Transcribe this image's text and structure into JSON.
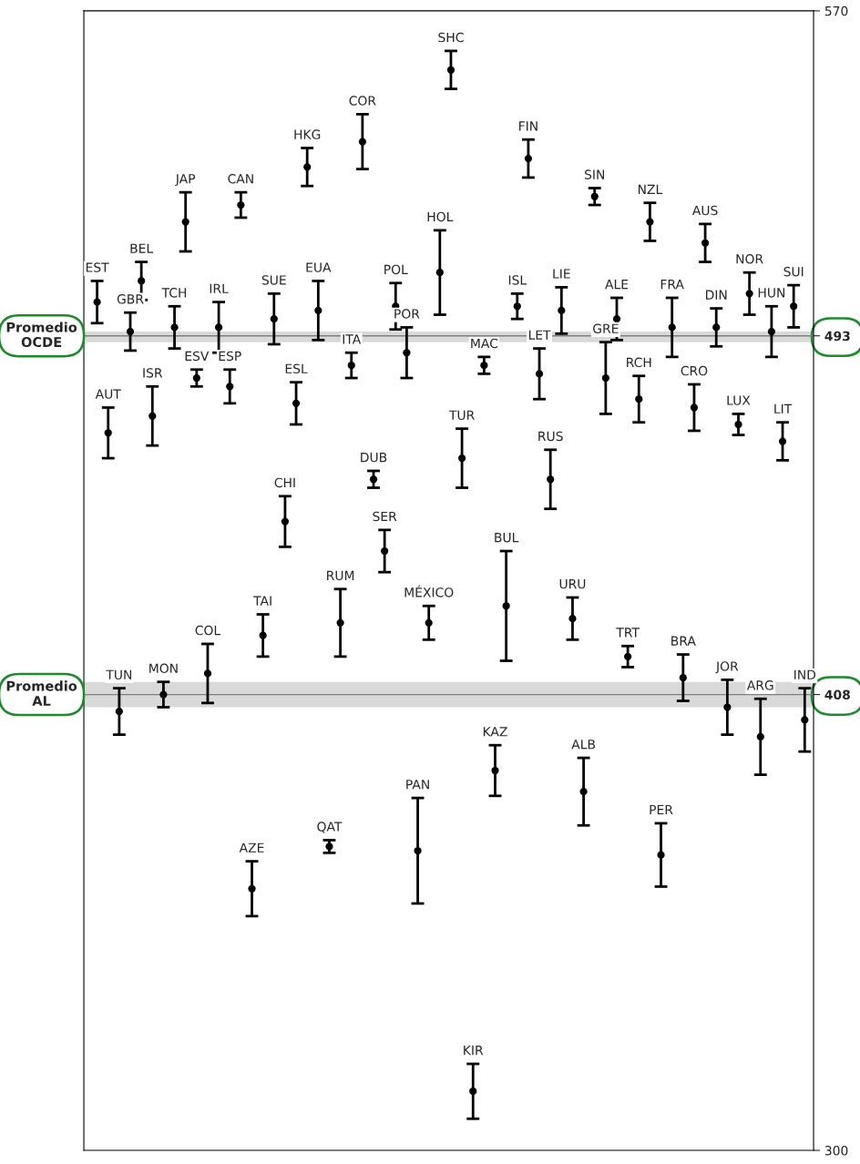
{
  "chart_data": {
    "type": "scatter",
    "categories": [
      "EST",
      "AUT",
      "TUN",
      "GBR",
      "BEL",
      "ISR",
      "MON",
      "TCH",
      "JAP",
      "ESV",
      "COL",
      "IRL",
      "ESP",
      "CAN",
      "AZE",
      "TAI",
      "SUE",
      "CHI",
      "ESL",
      "HKG",
      "EUA",
      "QAT",
      "RUM",
      "ITA",
      "COR",
      "DUB",
      "SER",
      "POL",
      "POR",
      "PAN",
      "MÉXICO",
      "HOL",
      "SHC",
      "TUR",
      "KIR",
      "MAC",
      "KAZ",
      "BUL",
      "ISL",
      "FIN",
      "LET",
      "RUS",
      "LIE",
      "URU",
      "ALB",
      "SIN",
      "GRE",
      "ALE",
      "TRT",
      "RCH",
      "NZL",
      "PER",
      "FRA",
      "BRA",
      "CRO",
      "AUS",
      "DIN",
      "JOR",
      "LUX",
      "NOR",
      "ARG",
      "HUN",
      "LIT",
      "SUI",
      "IND"
    ],
    "series": [
      {
        "color": "#000000",
        "values": [
          501,
          470,
          404,
          494,
          506,
          474,
          408,
          495,
          520,
          483,
          413,
          495,
          481,
          524,
          362,
          422,
          497,
          449,
          477,
          533,
          499,
          372,
          425,
          486,
          539,
          459,
          442,
          500,
          489,
          371,
          425,
          508,
          556,
          464,
          314,
          486,
          390,
          429,
          500,
          535,
          484,
          459,
          499,
          426,
          385,
          526,
          483,
          497,
          417,
          478,
          520,
          370,
          495,
          412,
          476,
          515,
          495,
          405,
          472,
          503,
          398,
          494,
          468,
          500,
          402
        ],
        "errors": [
          5,
          6,
          5.5,
          4.5,
          4.5,
          7,
          3,
          5,
          7,
          2,
          7,
          6,
          4,
          3,
          6.5,
          5,
          6,
          6,
          5,
          4.5,
          7,
          1.5,
          8,
          3,
          6.5,
          2,
          5,
          5.5,
          6,
          12.5,
          4,
          10,
          4.5,
          7,
          6.5,
          2,
          6,
          13,
          3,
          4.5,
          6,
          7,
          5.5,
          5,
          8,
          2,
          8.5,
          5,
          2.5,
          5.5,
          4.5,
          7.5,
          7,
          5.5,
          5.5,
          4.5,
          4.5,
          6.5,
          2.5,
          5,
          9,
          6,
          4.5,
          5,
          7.5
        ]
      }
    ],
    "ylim": [
      300,
      570
    ],
    "yticks": [
      300,
      408,
      493,
      570
    ],
    "tick_labels": "y",
    "marker": "circle",
    "grid": false,
    "ref_lines": [
      {
        "axis": "y",
        "value": 493,
        "label": "Promedio\nOCDE",
        "color": "#808080"
      },
      {
        "axis": "y",
        "value": 408,
        "label": "Promedio\nAL",
        "color": "#808080"
      }
    ],
    "bands": [
      {
        "axis": "y",
        "from": 491.5,
        "to": 494,
        "color": "#d9d9d9"
      },
      {
        "axis": "y",
        "from": 405,
        "to": 411,
        "color": "#d9d9d9"
      }
    ]
  }
}
